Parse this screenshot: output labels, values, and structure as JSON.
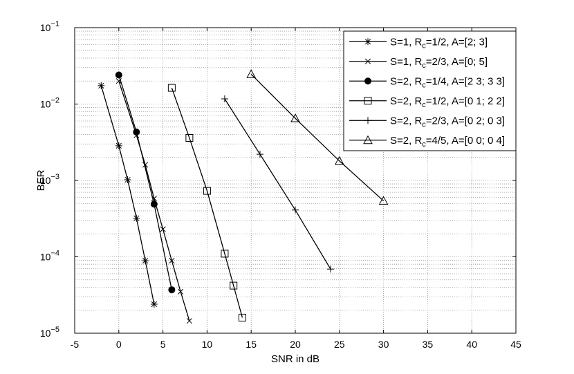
{
  "chart_data": {
    "type": "line",
    "x_label": "SNR in dB",
    "y_label": "BER",
    "log_y": true,
    "grid": true,
    "legend": "upper right",
    "xlim": [
      -5,
      45
    ],
    "xticks": [
      -5,
      0,
      5,
      10,
      15,
      20,
      25,
      30,
      35,
      40,
      45
    ],
    "ylim": [
      1e-05,
      0.1
    ],
    "yticks": [
      {
        "value": 1e-05,
        "label": "10−5"
      },
      {
        "value": 0.0001,
        "label": "10−4"
      },
      {
        "value": 0.001,
        "label": "10−3"
      },
      {
        "value": 0.01,
        "label": "10−2"
      },
      {
        "value": 0.1,
        "label": "10−1"
      }
    ],
    "series": [
      {
        "name": "S=1, Rc=1/2, A=[2; 3]",
        "color": "#000000",
        "marker": "asterisk",
        "x": [
          -2,
          0,
          1,
          2,
          3,
          4
        ],
        "values": [
          0.0174,
          0.00284,
          0.00102,
          0.00032,
          8.9e-05,
          2.4e-05
        ]
      },
      {
        "name": "S=1, Rc=2/3, A=[0; 5]",
        "color": "#000000",
        "marker": "x",
        "x": [
          0,
          2,
          3,
          4,
          5,
          6,
          7,
          8
        ],
        "values": [
          0.02,
          0.0039,
          0.0016,
          0.00058,
          0.00023,
          8.9e-05,
          3.5e-05,
          1.45e-05
        ]
      },
      {
        "name": "S=2, Rc=1/4, A=[2 3; 3 3]",
        "color": "#000000",
        "marker": "circle",
        "x": [
          0,
          2,
          4,
          6
        ],
        "values": [
          0.024,
          0.0043,
          0.00049,
          3.7e-05
        ]
      },
      {
        "name": "S=2, Rc=1/2, A=[0 1; 2 2]",
        "color": "#000000",
        "marker": "square",
        "x": [
          6,
          8,
          10,
          12,
          13,
          14
        ],
        "values": [
          0.0163,
          0.0036,
          0.00073,
          0.00011,
          4.2e-05,
          1.6e-05
        ]
      },
      {
        "name": "S=2, Rc=2/3, A=[0 2; 0 3]",
        "color": "#000000",
        "marker": "plus",
        "x": [
          12,
          16,
          20,
          24
        ],
        "values": [
          0.0117,
          0.0022,
          0.00041,
          6.9e-05
        ]
      },
      {
        "name": "S=2, Rc=4/5, A=[0 0; 0 4]",
        "color": "#000000",
        "marker": "triangle",
        "x": [
          15,
          20,
          25,
          30
        ],
        "values": [
          0.0246,
          0.0065,
          0.0018,
          0.00054
        ]
      }
    ]
  }
}
